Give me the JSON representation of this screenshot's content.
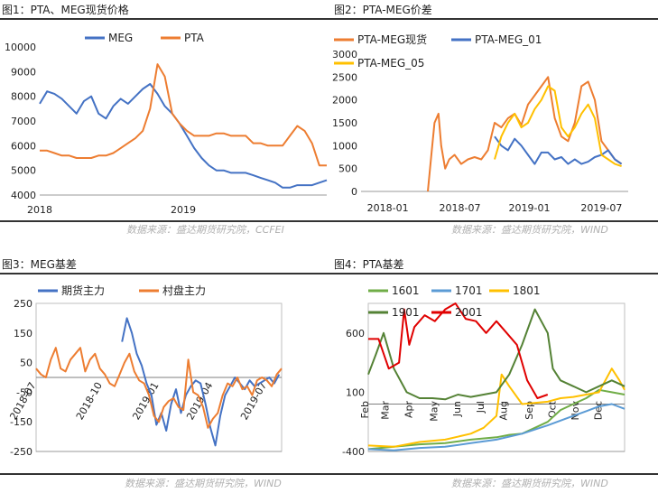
{
  "panels": [
    {
      "title": "图1：PTA、MEG现货价格",
      "source": "数据来源：盛达期货研究院，CCFEI"
    },
    {
      "title": "图2：PTA-MEG价差",
      "source": "数据来源：盛达期货研究院，WIND"
    },
    {
      "title": "图3：MEG基差",
      "source": "数据来源：盛达期货研究院，WIND"
    },
    {
      "title": "图4：PTA基差",
      "source": "数据来源：盛达期货研究院，WIND"
    }
  ],
  "chart_data": [
    {
      "type": "line",
      "ylim": [
        4000,
        10000
      ],
      "y_ticks": [
        "10000",
        "9000",
        "8000",
        "7000",
        "6000",
        "5000",
        "4000"
      ],
      "x_ticks": [
        "2018",
        "2019"
      ],
      "legend_position": "top",
      "series": [
        {
          "name": "MEG",
          "color": "#4472C4",
          "values": [
            7700,
            8200,
            8100,
            7900,
            7600,
            7300,
            7800,
            8000,
            7300,
            7100,
            7600,
            7900,
            7700,
            8000,
            8300,
            8500,
            8100,
            7600,
            7300,
            6900,
            6400,
            5900,
            5500,
            5200,
            5000,
            5000,
            4900,
            4900,
            4900,
            4800,
            4700,
            4600,
            4500,
            4300,
            4300,
            4400,
            4400,
            4400,
            4500,
            4600
          ]
        },
        {
          "name": "PTA",
          "color": "#ED7D31",
          "values": [
            5800,
            5800,
            5700,
            5600,
            5600,
            5500,
            5500,
            5500,
            5600,
            5600,
            5700,
            5900,
            6100,
            6300,
            6600,
            7500,
            9300,
            8800,
            7300,
            6900,
            6600,
            6400,
            6400,
            6400,
            6500,
            6500,
            6400,
            6400,
            6400,
            6100,
            6100,
            6000,
            6000,
            6000,
            6400,
            6800,
            6600,
            6100,
            5200,
            5200
          ]
        }
      ]
    },
    {
      "type": "line",
      "ylim": [
        0,
        3000
      ],
      "y_ticks": [
        "3000",
        "2500",
        "2000",
        "1500",
        "1000",
        "500",
        "0"
      ],
      "x_ticks": [
        "2018-01",
        "2018-07",
        "2019-01",
        "2019-07"
      ],
      "legend_position": "top",
      "series": [
        {
          "name": "PTA-MEG现货",
          "color": "#ED7D31",
          "x": [
            0.5,
            0.53,
            0.55,
            0.58,
            0.6,
            0.63,
            0.66,
            0.7,
            0.75,
            0.8,
            0.85,
            0.9,
            0.95,
            1.0,
            1.05,
            1.1,
            1.15,
            1.2,
            1.25,
            1.3,
            1.35,
            1.4,
            1.45,
            1.5,
            1.55,
            1.6,
            1.65,
            1.7,
            1.75,
            1.8,
            1.85,
            1.9,
            1.95
          ],
          "values": [
            0,
            900,
            1500,
            1700,
            1000,
            500,
            700,
            800,
            600,
            700,
            750,
            700,
            900,
            1500,
            1400,
            1600,
            1700,
            1450,
            1900,
            2100,
            2300,
            2500,
            1600,
            1200,
            1100,
            1500,
            2300,
            2400,
            2000,
            1100,
            900,
            700,
            600
          ]
        },
        {
          "name": "PTA-MEG_01",
          "color": "#4472C4",
          "x": [
            1.0,
            1.05,
            1.1,
            1.15,
            1.2,
            1.25,
            1.3,
            1.35,
            1.4,
            1.45,
            1.5,
            1.55,
            1.6,
            1.65,
            1.7,
            1.75,
            1.8,
            1.85,
            1.9,
            1.95
          ],
          "values": [
            1200,
            1000,
            900,
            1150,
            1000,
            800,
            600,
            850,
            850,
            700,
            750,
            600,
            700,
            600,
            650,
            750,
            800,
            900,
            700,
            600
          ]
        },
        {
          "name": "PTA-MEG_05",
          "color": "#FFC000",
          "x": [
            1.0,
            1.05,
            1.1,
            1.15,
            1.2,
            1.25,
            1.3,
            1.35,
            1.4,
            1.45,
            1.5,
            1.55,
            1.6,
            1.65,
            1.7,
            1.75,
            1.8,
            1.85,
            1.9,
            1.95
          ],
          "values": [
            700,
            1200,
            1500,
            1700,
            1400,
            1500,
            1800,
            2000,
            2300,
            2200,
            1400,
            1200,
            1400,
            1700,
            1900,
            1600,
            800,
            700,
            600,
            550
          ]
        }
      ]
    },
    {
      "type": "line",
      "ylim": [
        -250,
        250
      ],
      "y_ticks": [
        "250",
        "150",
        "50",
        "-50",
        "-150",
        "-250"
      ],
      "x_ticks": [
        "2018-07",
        "2018-10",
        "2019-01",
        "2019-04",
        "2019-07"
      ],
      "legend_position": "top",
      "series": [
        {
          "name": "期货主力",
          "color": "#4472C4",
          "x": [
            0.35,
            0.37,
            0.39,
            0.41,
            0.43,
            0.45,
            0.47,
            0.49,
            0.51,
            0.53,
            0.55,
            0.57,
            0.59,
            0.61,
            0.63,
            0.65,
            0.67,
            0.69,
            0.71,
            0.73,
            0.75,
            0.77,
            0.79,
            0.81,
            0.83,
            0.85,
            0.87,
            0.89,
            0.91,
            0.93,
            0.95,
            0.97,
            0.99
          ],
          "values": [
            120,
            200,
            150,
            80,
            40,
            -20,
            -60,
            -160,
            -120,
            -180,
            -90,
            -40,
            -120,
            -60,
            -30,
            -10,
            -20,
            -90,
            -170,
            -230,
            -130,
            -60,
            -30,
            0,
            -20,
            -40,
            -10,
            -30,
            -20,
            -10,
            0,
            -20,
            10
          ]
        },
        {
          "name": "村盘主力",
          "color": "#ED7D31",
          "x": [
            0.0,
            0.02,
            0.04,
            0.06,
            0.08,
            0.1,
            0.12,
            0.14,
            0.16,
            0.18,
            0.2,
            0.22,
            0.24,
            0.26,
            0.28,
            0.3,
            0.32,
            0.34,
            0.36,
            0.38,
            0.4,
            0.42,
            0.44,
            0.46,
            0.48,
            0.5,
            0.52,
            0.54,
            0.56,
            0.58,
            0.6,
            0.62,
            0.64,
            0.66,
            0.68,
            0.7,
            0.72,
            0.74,
            0.76,
            0.78,
            0.8,
            0.82,
            0.84,
            0.86,
            0.88,
            0.9,
            0.92,
            0.94,
            0.96,
            0.98,
            1.0
          ],
          "values": [
            30,
            10,
            0,
            60,
            100,
            30,
            20,
            60,
            80,
            100,
            20,
            60,
            80,
            30,
            10,
            -20,
            -30,
            10,
            50,
            80,
            20,
            -10,
            -20,
            -60,
            -130,
            -150,
            -100,
            -80,
            -70,
            -100,
            -110,
            60,
            -50,
            -60,
            -100,
            -170,
            -140,
            -120,
            -60,
            -20,
            -30,
            0,
            -40,
            -30,
            -60,
            -10,
            0,
            -10,
            -30,
            10,
            30
          ]
        }
      ]
    },
    {
      "type": "line",
      "ylim": [
        -400,
        850
      ],
      "y_ticks": [
        "600",
        "100",
        "-400"
      ],
      "x_ticks": [
        "Feb",
        "Mar",
        "Apr",
        "May",
        "Jun",
        "Jul",
        "Aug",
        "Sep",
        "Oct",
        "Nov",
        "Dec"
      ],
      "legend_position": "top",
      "series": [
        {
          "name": "1601",
          "color": "#70AD47",
          "x": [
            0.0,
            0.1,
            0.2,
            0.3,
            0.4,
            0.5,
            0.55,
            0.6,
            0.65,
            0.7,
            0.75,
            0.8,
            0.85,
            0.9,
            0.95,
            1.0
          ],
          "values": [
            -380,
            -360,
            -340,
            -330,
            -300,
            -280,
            -260,
            -250,
            -200,
            -150,
            -50,
            0,
            50,
            120,
            100,
            80
          ]
        },
        {
          "name": "1701",
          "color": "#5B9BD5",
          "x": [
            0.0,
            0.1,
            0.2,
            0.3,
            0.4,
            0.5,
            0.6,
            0.7,
            0.8,
            0.85,
            0.9,
            0.95,
            1.0
          ],
          "values": [
            -380,
            -390,
            -370,
            -360,
            -330,
            -300,
            -250,
            -180,
            -100,
            -60,
            -20,
            0,
            -40
          ]
        },
        {
          "name": "1801",
          "color": "#FFC000",
          "x": [
            0.0,
            0.1,
            0.2,
            0.3,
            0.4,
            0.45,
            0.5,
            0.52,
            0.55,
            0.6,
            0.7,
            0.75,
            0.8,
            0.85,
            0.9,
            0.95,
            0.98,
            1.0
          ],
          "values": [
            -350,
            -360,
            -320,
            -300,
            -250,
            -200,
            -100,
            250,
            150,
            0,
            20,
            50,
            60,
            80,
            100,
            300,
            200,
            120
          ]
        },
        {
          "name": "1901",
          "color": "#548235",
          "x": [
            0.0,
            0.03,
            0.06,
            0.1,
            0.15,
            0.2,
            0.25,
            0.3,
            0.35,
            0.4,
            0.45,
            0.5,
            0.55,
            0.6,
            0.65,
            0.7,
            0.72,
            0.75,
            0.8,
            0.85,
            0.9,
            0.95,
            1.0
          ],
          "values": [
            250,
            420,
            600,
            300,
            100,
            50,
            50,
            40,
            80,
            60,
            80,
            100,
            250,
            500,
            800,
            600,
            300,
            200,
            150,
            100,
            150,
            200,
            150
          ]
        },
        {
          "name": "2001",
          "color": "#E00000",
          "x": [
            0.0,
            0.04,
            0.08,
            0.12,
            0.14,
            0.16,
            0.18,
            0.22,
            0.26,
            0.3,
            0.34,
            0.38,
            0.42,
            0.46,
            0.5,
            0.54,
            0.58,
            0.62,
            0.66,
            0.7
          ],
          "values": [
            550,
            550,
            300,
            350,
            800,
            500,
            650,
            750,
            700,
            800,
            850,
            720,
            700,
            600,
            700,
            600,
            500,
            200,
            50,
            80
          ]
        }
      ]
    }
  ]
}
